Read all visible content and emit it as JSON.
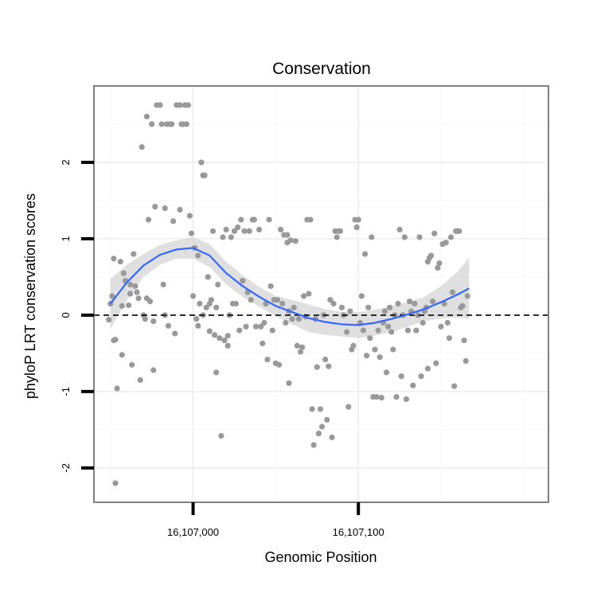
{
  "chart_data": {
    "type": "scatter",
    "title": "Conservation",
    "xlabel": "Genomic Position",
    "ylabel": "phyloP LRT conservation scores",
    "xlim": [
      16106940,
      16107215
    ],
    "ylim": [
      -2.45,
      3.0
    ],
    "x_ticks": [
      16107000,
      16107100
    ],
    "x_tick_labels": [
      "16,107,000",
      "16,107,100"
    ],
    "y_ticks": [
      -2,
      -1,
      0,
      1,
      2
    ],
    "y_tick_labels": [
      "-2",
      "-1",
      "0",
      "1",
      "2"
    ],
    "reference_line": {
      "y": 0,
      "style": "dashed"
    },
    "grid": true,
    "legend": "none",
    "colors": {
      "points": "#999999",
      "smooth": "#3366ff",
      "ribbon": "#d9d9d9",
      "panel_border": "#7f7f7f"
    },
    "points": [
      [
        16106951,
        0.25
      ],
      [
        16106950,
        0.15
      ],
      [
        16106949,
        -0.06
      ],
      [
        16106952,
        -0.33
      ],
      [
        16106953,
        -0.32
      ],
      [
        16106952,
        0.74
      ],
      [
        16106954,
        -0.96
      ],
      [
        16106953,
        -2.2
      ],
      [
        16106956,
        0.7
      ],
      [
        16106957,
        0.12
      ],
      [
        16106958,
        0.55
      ],
      [
        16106957,
        -0.52
      ],
      [
        16106959,
        0.45
      ],
      [
        16106961,
        0.13
      ],
      [
        16106962,
        0.4
      ],
      [
        16106962,
        0.28
      ],
      [
        16106963,
        -0.65
      ],
      [
        16106964,
        0.8
      ],
      [
        16106965,
        0.38
      ],
      [
        16106966,
        0.3
      ],
      [
        16106967,
        0.22
      ],
      [
        16106968,
        -0.85
      ],
      [
        16106969,
        2.2
      ],
      [
        16106970,
        0.0
      ],
      [
        16106971,
        -0.05
      ],
      [
        16106972,
        2.6
      ],
      [
        16106972,
        0.22
      ],
      [
        16106973,
        1.25
      ],
      [
        16106974,
        0.18
      ],
      [
        16106975,
        2.5
      ],
      [
        16106976,
        -0.08
      ],
      [
        16106977,
        1.42
      ],
      [
        16106976,
        -0.72
      ],
      [
        16106978,
        2.75
      ],
      [
        16106980,
        2.75
      ],
      [
        16106981,
        2.5
      ],
      [
        16106982,
        0.4
      ],
      [
        16106983,
        1.4
      ],
      [
        16106983,
        0.0
      ],
      [
        16106984,
        2.5
      ],
      [
        16106985,
        -0.14
      ],
      [
        16106986,
        2.5
      ],
      [
        16106987,
        2.5
      ],
      [
        16106988,
        1.23
      ],
      [
        16106989,
        -0.24
      ],
      [
        16106990,
        2.75
      ],
      [
        16106992,
        2.75
      ],
      [
        16106992,
        1.38
      ],
      [
        16106993,
        2.5
      ],
      [
        16106994,
        2.5
      ],
      [
        16106995,
        2.75
      ],
      [
        16106996,
        2.5
      ],
      [
        16106997,
        2.75
      ],
      [
        16106998,
        1.3
      ],
      [
        16106999,
        1.07
      ],
      [
        16107000,
        0.25
      ],
      [
        16107001,
        0.88
      ],
      [
        16107002,
        -0.05
      ],
      [
        16107003,
        0.78
      ],
      [
        16107003,
        -0.14
      ],
      [
        16107004,
        0.15
      ],
      [
        16107005,
        2.0
      ],
      [
        16107006,
        1.83
      ],
      [
        16107006,
        0.0
      ],
      [
        16107007,
        1.83
      ],
      [
        16107008,
        0.1
      ],
      [
        16107009,
        0.5
      ],
      [
        16107010,
        -0.21
      ],
      [
        16107010,
        0.15
      ],
      [
        16107011,
        0.2
      ],
      [
        16107012,
        1.1
      ],
      [
        16107013,
        -0.26
      ],
      [
        16107014,
        -0.75
      ],
      [
        16107014,
        0.1
      ],
      [
        16107015,
        0.4
      ],
      [
        16107016,
        -0.3
      ],
      [
        16107017,
        -1.58
      ],
      [
        16107018,
        1.02
      ],
      [
        16107019,
        -0.33
      ],
      [
        16107020,
        1.12
      ],
      [
        16107021,
        -0.27
      ],
      [
        16107021,
        -0.4
      ],
      [
        16107022,
        0.0
      ],
      [
        16107023,
        1.02
      ],
      [
        16107024,
        0.15
      ],
      [
        16107025,
        1.1
      ],
      [
        16107026,
        0.15
      ],
      [
        16107027,
        1.15
      ],
      [
        16107028,
        -0.2
      ],
      [
        16107029,
        1.25
      ],
      [
        16107030,
        0.45
      ],
      [
        16107031,
        1.1
      ],
      [
        16107032,
        -0.15
      ],
      [
        16107033,
        0.3
      ],
      [
        16107034,
        1.1
      ],
      [
        16107035,
        0.2
      ],
      [
        16107036,
        1.25
      ],
      [
        16107037,
        1.25
      ],
      [
        16107038,
        -0.15
      ],
      [
        16107040,
        1.12
      ],
      [
        16107041,
        -0.15
      ],
      [
        16107042,
        -0.37
      ],
      [
        16107043,
        -0.1
      ],
      [
        16107044,
        0.15
      ],
      [
        16107045,
        -0.58
      ],
      [
        16107046,
        1.25
      ],
      [
        16107047,
        0.38
      ],
      [
        16107048,
        -0.2
      ],
      [
        16107049,
        0.2
      ],
      [
        16107050,
        -0.63
      ],
      [
        16107051,
        0.2
      ],
      [
        16107052,
        -0.65
      ],
      [
        16107053,
        1.12
      ],
      [
        16107054,
        0.15
      ],
      [
        16107055,
        1.05
      ],
      [
        16107056,
        -0.1
      ],
      [
        16107057,
        0.95
      ],
      [
        16107057,
        1.05
      ],
      [
        16107058,
        -0.89
      ],
      [
        16107058,
        0.05
      ],
      [
        16107059,
        0.98
      ],
      [
        16107060,
        -0.05
      ],
      [
        16107061,
        0.1
      ],
      [
        16107062,
        0.97
      ],
      [
        16107063,
        -0.4
      ],
      [
        16107064,
        -0.05
      ],
      [
        16107065,
        -0.48
      ],
      [
        16107066,
        -0.42
      ],
      [
        16107067,
        0.25
      ],
      [
        16107068,
        -0.02
      ],
      [
        16107069,
        1.25
      ],
      [
        16107070,
        0.28
      ],
      [
        16107071,
        1.25
      ],
      [
        16107072,
        -1.23
      ],
      [
        16107073,
        -1.7
      ],
      [
        16107074,
        -0.05
      ],
      [
        16107075,
        -0.68
      ],
      [
        16107076,
        -1.55
      ],
      [
        16107077,
        -1.23
      ],
      [
        16107078,
        -1.46
      ],
      [
        16107079,
        0.0
      ],
      [
        16107080,
        -0.58
      ],
      [
        16107081,
        -1.37
      ],
      [
        16107082,
        -0.67
      ],
      [
        16107083,
        0.2
      ],
      [
        16107084,
        -1.6
      ],
      [
        16107085,
        0.15
      ],
      [
        16107086,
        1.1
      ],
      [
        16107087,
        1.02
      ],
      [
        16107088,
        1.1
      ],
      [
        16107089,
        1.1
      ],
      [
        16107090,
        0.1
      ],
      [
        16107091,
        0.0
      ],
      [
        16107093,
        -0.22
      ],
      [
        16107094,
        -1.2
      ],
      [
        16107095,
        0.05
      ],
      [
        16107096,
        -0.45
      ],
      [
        16107097,
        -0.4
      ],
      [
        16107098,
        1.25
      ],
      [
        16107099,
        1.15
      ],
      [
        16107100,
        1.25
      ],
      [
        16107101,
        -0.1
      ],
      [
        16107102,
        0.25
      ],
      [
        16107103,
        -0.2
      ],
      [
        16107104,
        0.8
      ],
      [
        16107105,
        -0.53
      ],
      [
        16107106,
        0.1
      ],
      [
        16107107,
        -0.3
      ],
      [
        16107108,
        1.02
      ],
      [
        16107109,
        -1.07
      ],
      [
        16107110,
        -0.45
      ],
      [
        16107111,
        -1.07
      ],
      [
        16107112,
        -0.2
      ],
      [
        16107113,
        -0.55
      ],
      [
        16107114,
        -1.08
      ],
      [
        16107115,
        -0.1
      ],
      [
        16107116,
        0.05
      ],
      [
        16107117,
        -0.75
      ],
      [
        16107118,
        -0.15
      ],
      [
        16107119,
        0.1
      ],
      [
        16107120,
        -0.22
      ],
      [
        16107121,
        -0.45
      ],
      [
        16107122,
        0.0
      ],
      [
        16107123,
        -1.07
      ],
      [
        16107124,
        0.15
      ],
      [
        16107125,
        1.12
      ],
      [
        16107126,
        -0.8
      ],
      [
        16107127,
        0.0
      ],
      [
        16107128,
        1.02
      ],
      [
        16107129,
        -1.1
      ],
      [
        16107130,
        -0.2
      ],
      [
        16107131,
        0.18
      ],
      [
        16107132,
        0.05
      ],
      [
        16107133,
        -0.92
      ],
      [
        16107134,
        0.15
      ],
      [
        16107135,
        -0.2
      ],
      [
        16107136,
        0.0
      ],
      [
        16107137,
        1.02
      ],
      [
        16107138,
        -0.8
      ],
      [
        16107139,
        -0.1
      ],
      [
        16107140,
        0.05
      ],
      [
        16107141,
        0.1
      ],
      [
        16107142,
        0.7
      ],
      [
        16107142,
        -0.7
      ],
      [
        16107143,
        0.75
      ],
      [
        16107144,
        0.78
      ],
      [
        16107145,
        0.18
      ],
      [
        16107146,
        1.07
      ],
      [
        16107147,
        -0.63
      ],
      [
        16107148,
        0.62
      ],
      [
        16107149,
        0.68
      ],
      [
        16107150,
        -0.15
      ],
      [
        16107151,
        0.93
      ],
      [
        16107152,
        0.15
      ],
      [
        16107153,
        0.95
      ],
      [
        16107154,
        -0.1
      ],
      [
        16107155,
        -0.3
      ],
      [
        16107156,
        1.02
      ],
      [
        16107157,
        0.3
      ],
      [
        16107158,
        -0.93
      ],
      [
        16107159,
        1.1
      ],
      [
        16107160,
        1.1
      ],
      [
        16107161,
        1.1
      ],
      [
        16107162,
        0.1
      ],
      [
        16107163,
        0.12
      ],
      [
        16107164,
        -0.33
      ],
      [
        16107165,
        -0.6
      ],
      [
        16107166,
        0.25
      ]
    ],
    "smooth_line": {
      "x": [
        16106950,
        16106960,
        16106970,
        16106980,
        16106990,
        16107000,
        16107010,
        16107020,
        16107030,
        16107040,
        16107050,
        16107060,
        16107070,
        16107080,
        16107090,
        16107100,
        16107110,
        16107120,
        16107130,
        16107140,
        16107150,
        16107160,
        16107167
      ],
      "y": [
        0.15,
        0.43,
        0.65,
        0.79,
        0.86,
        0.88,
        0.78,
        0.55,
        0.38,
        0.24,
        0.12,
        0.04,
        -0.04,
        -0.09,
        -0.12,
        -0.13,
        -0.1,
        -0.05,
        0.01,
        0.08,
        0.17,
        0.27,
        0.35
      ],
      "lower": [
        -0.18,
        0.2,
        0.5,
        0.66,
        0.74,
        0.74,
        0.63,
        0.4,
        0.24,
        0.11,
        -0.01,
        -0.12,
        -0.22,
        -0.26,
        -0.28,
        -0.3,
        -0.27,
        -0.22,
        -0.15,
        -0.08,
        -0.04,
        -0.03,
        -0.05
      ],
      "upper": [
        0.48,
        0.66,
        0.8,
        0.92,
        0.98,
        1.02,
        0.93,
        0.7,
        0.52,
        0.37,
        0.25,
        0.2,
        0.14,
        0.08,
        0.04,
        0.04,
        0.07,
        0.12,
        0.17,
        0.24,
        0.38,
        0.57,
        0.75
      ]
    }
  }
}
